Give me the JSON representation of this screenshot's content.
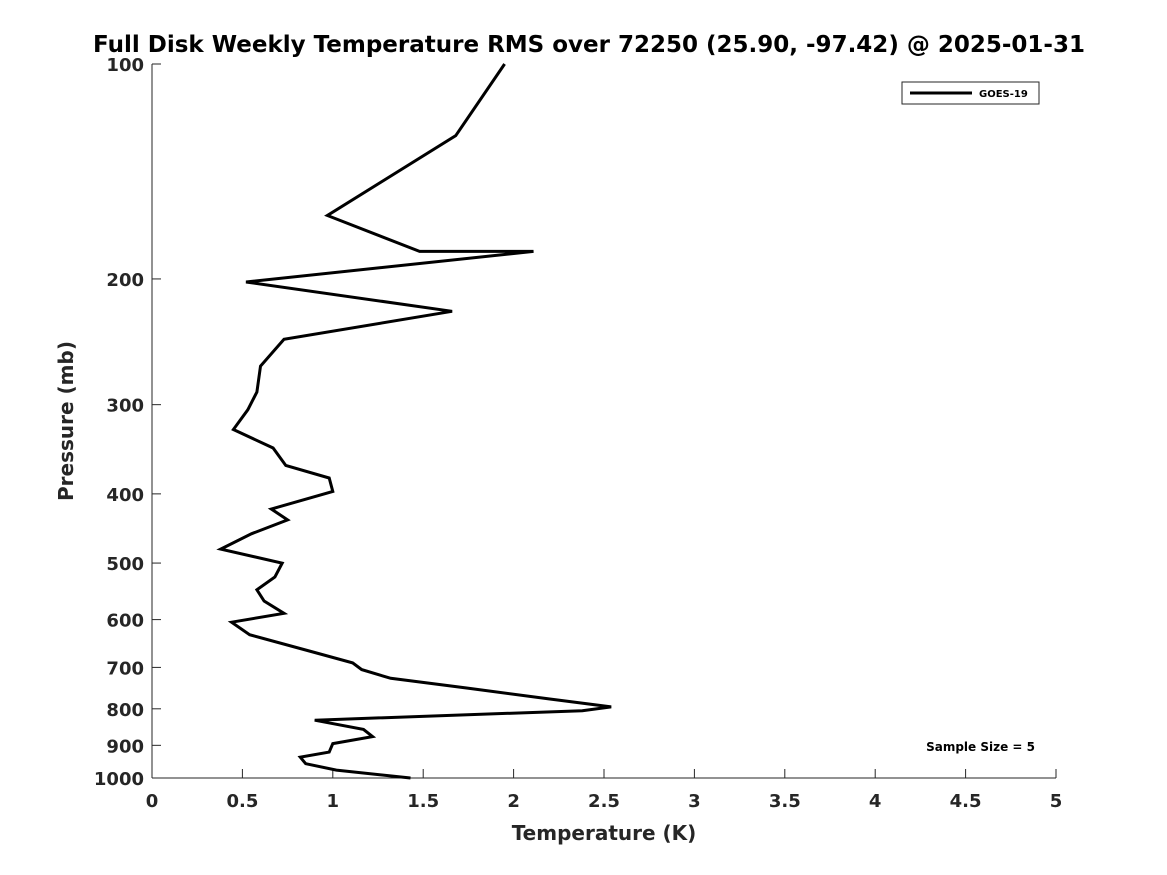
{
  "chart_data": {
    "type": "line",
    "title": "Full Disk Weekly Temperature RMS over 72250 (25.90, -97.42) @ 2025-01-31",
    "xlabel": "Temperature (K)",
    "ylabel": "Pressure (mb)",
    "xlim": [
      0,
      5
    ],
    "ylim": [
      100,
      1000
    ],
    "yscale": "log",
    "y_reversed": true,
    "grid": false,
    "legend_position": "top-right",
    "x_ticks": [
      0,
      0.5,
      1,
      1.5,
      2,
      2.5,
      3,
      3.5,
      4,
      4.5,
      5
    ],
    "x_tick_labels": [
      "0",
      "0.5",
      "1",
      "1.5",
      "2",
      "2.5",
      "3",
      "3.5",
      "4",
      "4.5",
      "5"
    ],
    "y_ticks": [
      100,
      200,
      300,
      400,
      500,
      600,
      700,
      800,
      900,
      1000
    ],
    "y_tick_labels": [
      "100",
      "200",
      "300",
      "400",
      "500",
      "600",
      "700",
      "800",
      "900",
      "1000"
    ],
    "series": [
      {
        "name": "GOES-19",
        "color": "#000000",
        "x": [
          1.95,
          1.68,
          0.97,
          1.48,
          2.11,
          0.52,
          1.66,
          0.73,
          0.6,
          0.58,
          0.53,
          0.45,
          0.67,
          0.74,
          0.98,
          1.0,
          0.66,
          0.75,
          0.55,
          0.38,
          0.72,
          0.68,
          0.58,
          0.62,
          0.73,
          0.44,
          0.54,
          0.88,
          1.11,
          1.16,
          1.32,
          1.74,
          2.2,
          2.54,
          2.38,
          0.9,
          1.17,
          1.22,
          1.0,
          0.98,
          0.82,
          0.85,
          1.02,
          1.43
        ],
        "y": [
          100,
          126,
          163,
          183,
          183,
          202,
          222,
          243,
          265,
          288,
          305,
          325,
          345,
          365,
          380,
          397,
          420,
          435,
          455,
          478,
          500,
          523,
          545,
          565,
          588,
          605,
          630,
          665,
          690,
          705,
          725,
          748,
          775,
          795,
          805,
          830,
          855,
          875,
          895,
          920,
          935,
          955,
          975,
          1000
        ]
      }
    ],
    "annotations": [
      {
        "text": "Sample Size = 5",
        "position": "bottom-right"
      }
    ]
  }
}
